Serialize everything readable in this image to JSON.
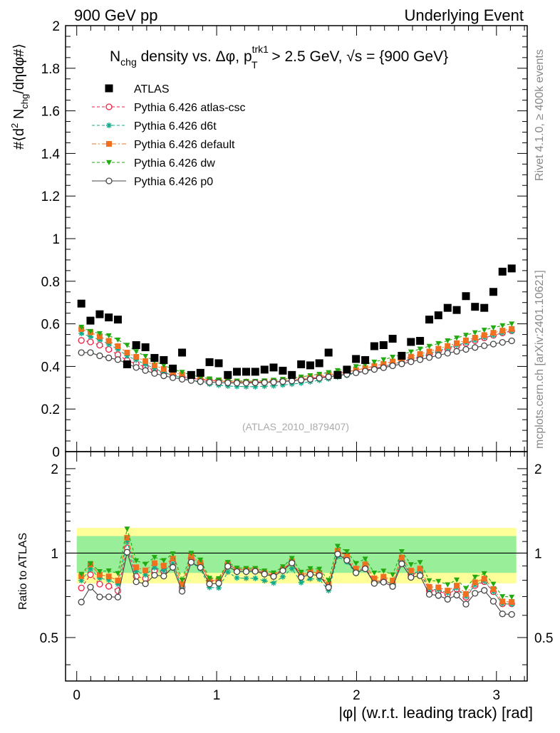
{
  "header": {
    "left": "900 GeV pp",
    "right": "Underlying Event"
  },
  "side_labels": {
    "rivet": "Rivet 4.1.0, ≥ 400k events",
    "mcplots": "mcplots.cern.ch [arXiv:2401.10621]"
  },
  "watermark": "(ATLAS_2010_I879407)",
  "chart_data": {
    "type": "scatter",
    "title": "N_chg density vs. Δφ, p_T^trk1 > 2.5 GeV, √s = {900 GeV}",
    "title_parts": {
      "n": "N",
      "chg": "chg",
      "mid": " density vs. Δφ, p",
      "sup": "trk1",
      "sub": "T",
      "post": " > 2.5 GeV, √s = {900 GeV}"
    },
    "ylabel": "#⟨d² N_chg/dηdφ#⟩",
    "ylabel_parts": {
      "a": "#⟨d",
      "b": "2",
      "c": " N",
      "d": "chg",
      "e": "/dηdφ#⟩"
    },
    "xlabel": "|φ| (w.r.t. leading track) [rad]",
    "ratio_ylabel": "Ratio to ATLAS",
    "xlim": [
      -0.08,
      3.22
    ],
    "ylim": [
      0,
      2
    ],
    "ratio_ylim": [
      0.35,
      2.3
    ],
    "x_ticks": [
      "0",
      "1",
      "2",
      "3"
    ],
    "x_tick_values": [
      0,
      1,
      2,
      3
    ],
    "y_ticks": [
      "0",
      "0.2",
      "0.4",
      "0.6",
      "0.8",
      "1",
      "1.2",
      "1.4",
      "1.6",
      "1.8",
      "2"
    ],
    "y_tick_values": [
      0,
      0.2,
      0.4,
      0.6,
      0.8,
      1,
      1.2,
      1.4,
      1.6,
      1.8,
      2
    ],
    "ratio_ticks": [
      "0.5",
      "1",
      "2"
    ],
    "ratio_tick_values": [
      0.5,
      1,
      2
    ],
    "legend_position": "top-left",
    "x": [
      0.033,
      0.098,
      0.164,
      0.229,
      0.294,
      0.36,
      0.425,
      0.491,
      0.556,
      0.622,
      0.687,
      0.753,
      0.818,
      0.884,
      0.949,
      1.015,
      1.08,
      1.145,
      1.211,
      1.276,
      1.342,
      1.407,
      1.473,
      1.538,
      1.604,
      1.669,
      1.734,
      1.8,
      1.865,
      1.931,
      1.996,
      2.062,
      2.127,
      2.193,
      2.258,
      2.323,
      2.389,
      2.454,
      2.52,
      2.585,
      2.651,
      2.716,
      2.782,
      2.847,
      2.913,
      2.978,
      3.043,
      3.109
    ],
    "atlas": [
      0.695,
      0.615,
      0.645,
      0.63,
      0.62,
      0.41,
      0.5,
      0.49,
      0.44,
      0.43,
      0.39,
      0.465,
      0.36,
      0.37,
      0.42,
      0.415,
      0.36,
      0.375,
      0.375,
      0.375,
      0.385,
      0.395,
      0.38,
      0.36,
      0.41,
      0.405,
      0.415,
      0.465,
      0.36,
      0.385,
      0.435,
      0.43,
      0.495,
      0.5,
      0.53,
      0.45,
      0.515,
      0.52,
      0.62,
      0.64,
      0.675,
      0.665,
      0.73,
      0.68,
      0.675,
      0.75,
      0.845,
      0.86
    ],
    "ratio_bands": {
      "inner": [
        0.85,
        1.15
      ],
      "outer": [
        0.78,
        1.23
      ]
    },
    "series": [
      {
        "name": "Pythia 6.426 atlas-csc",
        "color": "#ee2244",
        "marker": "open-circle",
        "dash": "4,3",
        "values": [
          0.522,
          0.515,
          0.5,
          0.48,
          0.455,
          0.428,
          0.413,
          0.398,
          0.382,
          0.37,
          0.36,
          0.351,
          0.345,
          0.338,
          0.334,
          0.331,
          0.329,
          0.327,
          0.327,
          0.326,
          0.327,
          0.329,
          0.332,
          0.335,
          0.339,
          0.344,
          0.349,
          0.354,
          0.36,
          0.367,
          0.374,
          0.382,
          0.391,
          0.4,
          0.41,
          0.421,
          0.432,
          0.444,
          0.456,
          0.469,
          0.482,
          0.495,
          0.508,
          0.521,
          0.534,
          0.546,
          0.557,
          0.567
        ]
      },
      {
        "name": "Pythia 6.426 d6t",
        "color": "#11aa88",
        "marker": "star",
        "dash": "4,3",
        "values": [
          0.555,
          0.54,
          0.525,
          0.505,
          0.48,
          0.45,
          0.43,
          0.41,
          0.39,
          0.372,
          0.358,
          0.345,
          0.334,
          0.325,
          0.317,
          0.312,
          0.308,
          0.306,
          0.305,
          0.305,
          0.307,
          0.309,
          0.313,
          0.317,
          0.322,
          0.328,
          0.335,
          0.342,
          0.35,
          0.358,
          0.368,
          0.378,
          0.388,
          0.399,
          0.411,
          0.423,
          0.435,
          0.448,
          0.461,
          0.474,
          0.487,
          0.5,
          0.512,
          0.524,
          0.536,
          0.547,
          0.557,
          0.566
        ]
      },
      {
        "name": "Pythia 6.426 default",
        "color": "#f07020",
        "marker": "filled-square",
        "dash": "6,3,2,3",
        "values": [
          0.575,
          0.56,
          0.54,
          0.52,
          0.495,
          0.465,
          0.445,
          0.425,
          0.405,
          0.388,
          0.373,
          0.361,
          0.35,
          0.342,
          0.336,
          0.332,
          0.329,
          0.327,
          0.327,
          0.327,
          0.328,
          0.33,
          0.333,
          0.337,
          0.342,
          0.347,
          0.353,
          0.36,
          0.367,
          0.375,
          0.383,
          0.392,
          0.402,
          0.412,
          0.423,
          0.434,
          0.446,
          0.458,
          0.47,
          0.483,
          0.496,
          0.509,
          0.522,
          0.535,
          0.547,
          0.558,
          0.568,
          0.576
        ]
      },
      {
        "name": "Pythia 6.426 dw",
        "color": "#22aa11",
        "marker": "filled-triangle-down",
        "dash": "4,3",
        "values": [
          0.585,
          0.565,
          0.555,
          0.545,
          0.525,
          0.5,
          0.47,
          0.448,
          0.425,
          0.405,
          0.388,
          0.373,
          0.36,
          0.35,
          0.342,
          0.337,
          0.334,
          0.332,
          0.331,
          0.331,
          0.333,
          0.336,
          0.34,
          0.345,
          0.351,
          0.357,
          0.364,
          0.372,
          0.381,
          0.39,
          0.4,
          0.41,
          0.421,
          0.432,
          0.444,
          0.456,
          0.469,
          0.482,
          0.495,
          0.508,
          0.521,
          0.534,
          0.547,
          0.559,
          0.571,
          0.582,
          0.592,
          0.6
        ]
      },
      {
        "name": "Pythia 6.426 p0",
        "color": "#444444",
        "marker": "open-circle",
        "dash": "",
        "values": [
          0.465,
          0.465,
          0.45,
          0.44,
          0.432,
          0.413,
          0.395,
          0.381,
          0.367,
          0.356,
          0.347,
          0.34,
          0.334,
          0.329,
          0.326,
          0.324,
          0.323,
          0.322,
          0.322,
          0.323,
          0.324,
          0.326,
          0.329,
          0.332,
          0.336,
          0.34,
          0.345,
          0.351,
          0.357,
          0.363,
          0.37,
          0.378,
          0.386,
          0.394,
          0.403,
          0.412,
          0.422,
          0.432,
          0.442,
          0.452,
          0.462,
          0.471,
          0.48,
          0.489,
          0.497,
          0.505,
          0.513,
          0.52
        ]
      }
    ]
  }
}
